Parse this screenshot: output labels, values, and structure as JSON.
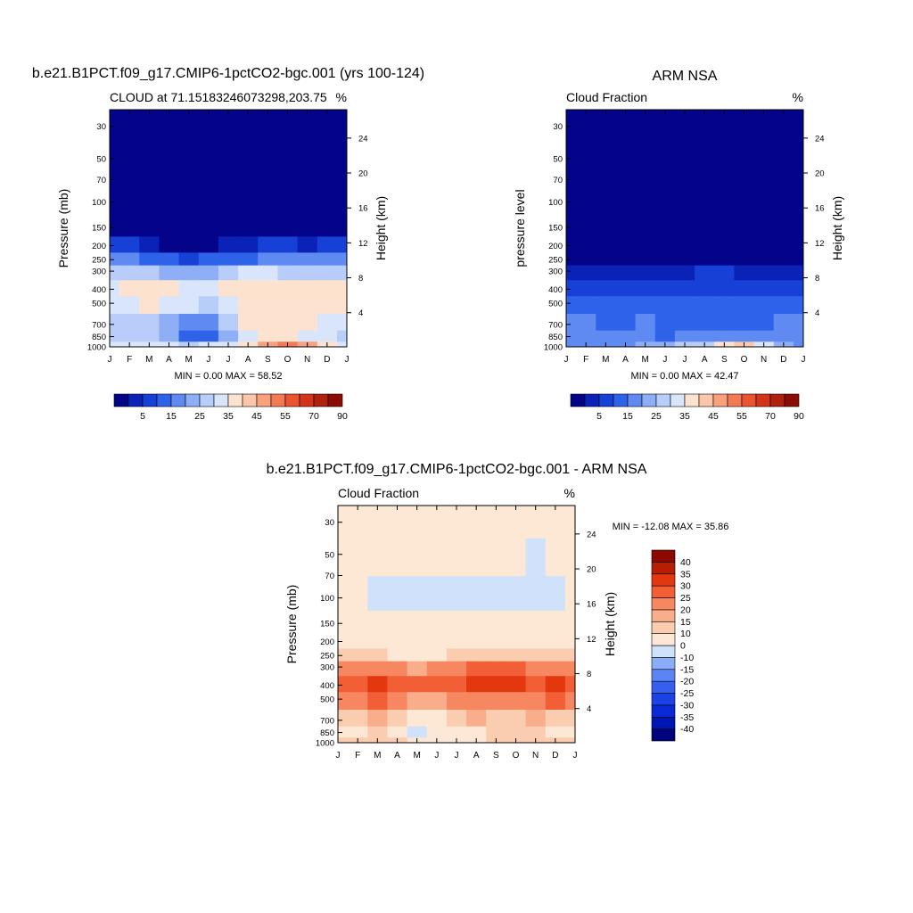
{
  "panels": [
    {
      "title": "b.e21.B1PCT.f09_g17.CMIP6-1pctCO2-bgc.001 (yrs 100-124)",
      "subtitle_left": "CLOUD at 71.15183246073298,203.75",
      "subtitle_right": "%",
      "ylabel": "Pressure (mb)",
      "ylabel_right": "Height (km)",
      "minmax": "MIN =   0.00 MAX =  58.52"
    },
    {
      "title": "ARM NSA",
      "subtitle_left": "Cloud Fraction",
      "subtitle_right": "%",
      "ylabel": "pressure level",
      "ylabel_right": "Height (km)",
      "minmax": "MIN =   0.00 MAX =  42.47"
    },
    {
      "title": "b.e21.B1PCT.f09_g17.CMIP6-1pctCO2-bgc.001 - ARM NSA",
      "subtitle_left": "Cloud Fraction",
      "subtitle_right": "%",
      "ylabel": "Pressure (mb)",
      "ylabel_right": "Height (km)",
      "minmax": "MIN = -12.08 MAX =  35.86"
    }
  ],
  "chart_data": [
    {
      "type": "heatmap",
      "title": "b.e21.B1PCT.f09_g17.CMIP6-1pctCO2-bgc.001 (yrs 100-124)",
      "subtitle": "CLOUD at 71.15183246073298,203.75",
      "units": "%",
      "xlabel": "",
      "ylabel": "Pressure (mb)",
      "ylabel_right": "Height (km)",
      "x_ticks": [
        "J",
        "F",
        "M",
        "A",
        "M",
        "J",
        "J",
        "A",
        "S",
        "O",
        "N",
        "D",
        "J"
      ],
      "y_ticks_pressure": [
        30,
        50,
        70,
        100,
        150,
        200,
        250,
        300,
        400,
        500,
        700,
        850,
        1000
      ],
      "y_ticks_height": [
        24,
        20,
        16,
        12,
        8,
        4
      ],
      "y_scale": "log",
      "levels": [
        30,
        50,
        100,
        150,
        200,
        250,
        300,
        400,
        500,
        700,
        850,
        1000
      ],
      "values": [
        [
          0,
          0,
          0,
          0,
          0,
          0,
          0,
          0,
          0,
          0,
          0,
          0,
          0
        ],
        [
          0,
          0,
          0,
          0,
          0,
          0,
          0,
          0,
          0,
          0,
          0,
          0,
          0
        ],
        [
          0,
          0,
          0,
          0,
          0,
          0,
          0,
          0,
          0,
          0,
          0,
          0,
          0
        ],
        [
          0,
          0,
          0,
          0,
          0,
          0,
          0,
          0,
          0,
          0,
          0,
          0,
          0
        ],
        [
          6,
          5,
          3,
          1,
          1,
          2,
          3,
          4,
          5,
          5,
          4,
          5,
          6
        ],
        [
          15,
          15,
          13,
          10,
          8,
          10,
          12,
          14,
          15,
          15,
          15,
          15,
          15
        ],
        [
          27,
          27,
          25,
          22,
          20,
          22,
          25,
          30,
          30,
          29,
          28,
          28,
          27
        ],
        [
          33,
          37,
          38,
          37,
          33,
          33,
          35,
          37,
          37,
          37,
          37,
          38,
          38
        ],
        [
          33,
          33,
          37,
          33,
          30,
          27,
          32,
          35,
          37,
          37,
          37,
          37,
          37
        ],
        [
          27,
          25,
          29,
          23,
          18,
          16,
          25,
          35,
          37,
          37,
          37,
          33,
          34
        ],
        [
          25,
          27,
          27,
          23,
          12,
          14,
          24,
          33,
          36,
          37,
          33,
          32,
          27
        ],
        [
          30,
          31,
          31,
          31,
          29,
          30,
          33,
          37,
          46,
          52,
          45,
          36,
          30
        ]
      ],
      "colorbar": {
        "labels": [
          "5",
          "15",
          "25",
          "35",
          "45",
          "55",
          "70",
          "90"
        ],
        "orientation": "horizontal"
      },
      "minmax": "MIN =   0.00 MAX =  58.52"
    },
    {
      "type": "heatmap",
      "title": "ARM NSA",
      "subtitle": "Cloud Fraction",
      "units": "%",
      "xlabel": "",
      "ylabel": "pressure level",
      "ylabel_right": "Height (km)",
      "x_ticks": [
        "J",
        "F",
        "M",
        "A",
        "M",
        "J",
        "J",
        "A",
        "S",
        "O",
        "N",
        "D",
        "J"
      ],
      "y_ticks_pressure": [
        30,
        50,
        70,
        100,
        150,
        200,
        250,
        300,
        400,
        500,
        700,
        850,
        1000
      ],
      "y_ticks_height": [
        24,
        20,
        16,
        12,
        8,
        4
      ],
      "y_scale": "log",
      "levels": [
        30,
        50,
        100,
        150,
        200,
        250,
        300,
        400,
        500,
        700,
        850,
        1000
      ],
      "values": [
        [
          0,
          0,
          0,
          0,
          0,
          0,
          0,
          0,
          0,
          0,
          0,
          0,
          0
        ],
        [
          0,
          0,
          0,
          0,
          0,
          0,
          0,
          0,
          0,
          0,
          0,
          0,
          0
        ],
        [
          0,
          0,
          0,
          0,
          0,
          0,
          0,
          0,
          0,
          0,
          0,
          0,
          0
        ],
        [
          0,
          0,
          0,
          0,
          0,
          0,
          0,
          0,
          0,
          0,
          0,
          0,
          0
        ],
        [
          1,
          1,
          1,
          1,
          1,
          1,
          1,
          1,
          1,
          1,
          1,
          1,
          1
        ],
        [
          2,
          2,
          2,
          2,
          2,
          2,
          2,
          2,
          2,
          2,
          2,
          2,
          2
        ],
        [
          4,
          4,
          4,
          3,
          3,
          4,
          4,
          5,
          5,
          4,
          4,
          4,
          4
        ],
        [
          9,
          9,
          7,
          6,
          7,
          8,
          8,
          9,
          8,
          7,
          7,
          8,
          9
        ],
        [
          12,
          13,
          12,
          11,
          13,
          14,
          13,
          12,
          12,
          11,
          11,
          12,
          12
        ],
        [
          15,
          15,
          14,
          14,
          16,
          12,
          14,
          14,
          14,
          14,
          14,
          15,
          15
        ],
        [
          17,
          18,
          17,
          16,
          18,
          13,
          17,
          18,
          17,
          17,
          16,
          17,
          17
        ],
        [
          19,
          19,
          19,
          19,
          22,
          24,
          25,
          29,
          35,
          40,
          33,
          24,
          19
        ]
      ],
      "colorbar": {
        "labels": [
          "5",
          "15",
          "25",
          "35",
          "45",
          "55",
          "70",
          "90"
        ],
        "orientation": "horizontal"
      },
      "minmax": "MIN =   0.00 MAX =  42.47"
    },
    {
      "type": "heatmap",
      "title": "b.e21.B1PCT.f09_g17.CMIP6-1pctCO2-bgc.001 - ARM NSA",
      "subtitle": "Cloud Fraction",
      "units": "%",
      "xlabel": "",
      "ylabel": "Pressure (mb)",
      "ylabel_right": "Height (km)",
      "x_ticks": [
        "J",
        "F",
        "M",
        "A",
        "M",
        "J",
        "J",
        "A",
        "S",
        "O",
        "N",
        "D",
        "J"
      ],
      "y_ticks_pressure": [
        30,
        50,
        70,
        100,
        150,
        200,
        250,
        300,
        400,
        500,
        700,
        850,
        1000
      ],
      "y_ticks_height": [
        24,
        20,
        16,
        12,
        8,
        4
      ],
      "y_scale": "log",
      "levels": [
        30,
        50,
        100,
        150,
        200,
        250,
        300,
        400,
        500,
        700,
        850,
        1000
      ],
      "values": [
        [
          0,
          0,
          0,
          0,
          0,
          0,
          0,
          0,
          0,
          0,
          0,
          0,
          0
        ],
        [
          0,
          0,
          0,
          0,
          0,
          0,
          0,
          0,
          0,
          0,
          -1,
          0,
          0
        ],
        [
          0,
          0,
          -1,
          -1,
          -1,
          -1,
          -1,
          -1,
          -1,
          -1,
          -1,
          -1,
          0
        ],
        [
          0,
          0,
          0,
          0,
          0,
          0,
          0,
          0,
          0,
          0,
          0,
          0,
          0
        ],
        [
          5,
          5,
          3,
          2,
          1,
          2,
          3,
          4,
          4,
          4,
          4,
          4,
          5
        ],
        [
          13,
          13,
          11,
          9,
          7,
          9,
          10,
          12,
          13,
          12,
          12,
          12,
          13
        ],
        [
          22,
          22,
          22,
          20,
          18,
          20,
          22,
          25,
          25,
          25,
          24,
          24,
          22
        ],
        [
          26,
          28,
          31,
          28,
          25,
          26,
          28,
          31,
          33,
          31,
          29,
          31,
          28
        ],
        [
          20,
          20,
          25,
          22,
          17,
          16,
          20,
          22,
          24,
          24,
          23,
          25,
          23
        ],
        [
          12,
          10,
          15,
          10,
          3,
          4,
          10,
          15,
          13,
          12,
          15,
          14,
          12
        ],
        [
          9,
          9,
          10,
          6,
          -1,
          1,
          7,
          8,
          12,
          12,
          10,
          9,
          9
        ],
        [
          11,
          12,
          12,
          10,
          7,
          6,
          8,
          8,
          11,
          12,
          12,
          12,
          11
        ]
      ],
      "colorbar": {
        "labels": [
          "40",
          "35",
          "30",
          "25",
          "20",
          "15",
          "10",
          "0",
          "-10",
          "-15",
          "-20",
          "-25",
          "-30",
          "-35",
          "-40"
        ],
        "orientation": "vertical"
      },
      "minmax": "MIN = -12.08 MAX =  35.86"
    }
  ]
}
